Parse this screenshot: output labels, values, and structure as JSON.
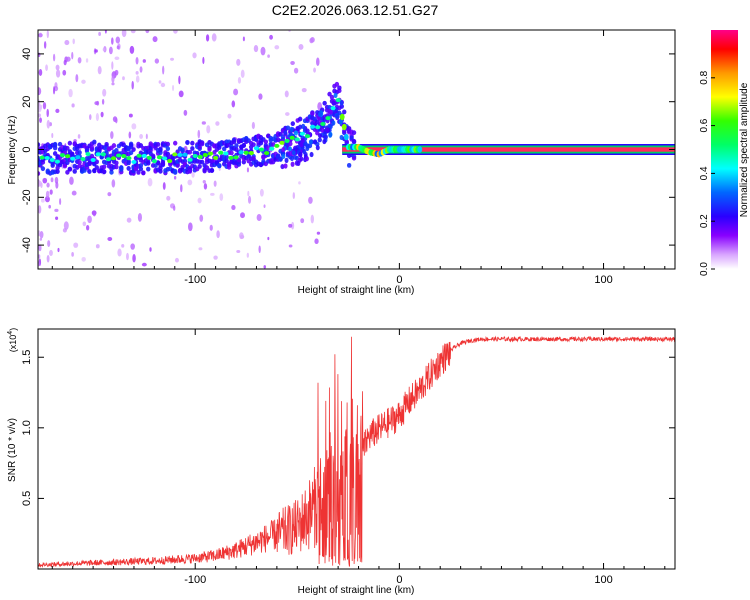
{
  "figure": {
    "title": "C2E2.2026.063.12.51.G27"
  },
  "chart_data": [
    {
      "type": "heatmap",
      "xlabel": "Height of straight line (km)",
      "ylabel": "Frequency (Hz)",
      "xlim": [
        -177,
        135
      ],
      "ylim": [
        -50,
        50
      ],
      "xticks": [
        -100,
        0,
        100
      ],
      "xtick_labels": [
        "-100",
        "0",
        "100"
      ],
      "yticks": [
        -40,
        -20,
        0,
        20,
        40
      ],
      "ytick_labels": [
        "-40",
        "-20",
        "0",
        "20",
        "40"
      ],
      "grid": false,
      "colorbar": {
        "label": "Normalized spectral amplitude",
        "range": [
          0,
          1
        ],
        "ticks": [
          0,
          0.2,
          0.4,
          0.6,
          0.8
        ],
        "tick_labels": [
          "0.0",
          "0.2",
          "0.4",
          "0.6",
          "0.8"
        ],
        "colormap": [
          "#ffffff",
          "#cc66ff",
          "#3300ff",
          "#00ffff",
          "#00ff00",
          "#ffff00",
          "#ff6600",
          "#ff0000",
          "#ff0088"
        ]
      },
      "series": [
        {
          "name": "dominant frequency track",
          "x": [
            -177,
            -150,
            -125,
            -100,
            -80,
            -65,
            -55,
            -50,
            -45,
            -40,
            -35,
            -30,
            -25,
            -20,
            -15,
            -10,
            -5,
            0,
            10,
            135
          ],
          "y": [
            -4,
            -3,
            -4,
            -3,
            -2,
            0,
            3,
            5,
            7,
            10,
            14,
            22,
            1,
            1,
            -1,
            -2,
            0,
            0,
            0,
            0
          ]
        }
      ]
    },
    {
      "type": "line",
      "xlabel": "Height of straight line (km)",
      "ylabel": "SNR (10 * v/v)",
      "y_multiplier": "(x10",
      "y_multiplier_exp": "4",
      "y_multiplier_close": ")",
      "xlim": [
        -177,
        135
      ],
      "ylim": [
        0,
        1.7
      ],
      "xticks": [
        -100,
        0,
        100
      ],
      "xtick_labels": [
        "-100",
        "0",
        "100"
      ],
      "yticks": [
        0.5,
        1.0,
        1.5
      ],
      "ytick_labels": [
        "0.5",
        "1.0",
        "1.5"
      ],
      "grid": false,
      "color": "#ee3333",
      "series": [
        {
          "name": "SNR envelope",
          "x": [
            -177,
            -160,
            -140,
            -120,
            -100,
            -90,
            -80,
            -70,
            -60,
            -50,
            -45,
            -40,
            -35,
            -30,
            -25,
            -22,
            -20,
            -18,
            -15,
            -10,
            -5,
            0,
            5,
            10,
            15,
            20,
            25,
            30,
            35,
            40,
            50,
            60,
            80,
            100,
            120,
            135
          ],
          "y": [
            0.03,
            0.04,
            0.05,
            0.06,
            0.08,
            0.1,
            0.14,
            0.2,
            0.26,
            0.32,
            0.4,
            0.5,
            0.55,
            0.6,
            0.65,
            0.6,
            0.7,
            0.85,
            0.95,
            1.0,
            1.05,
            1.1,
            1.2,
            1.28,
            1.38,
            1.48,
            1.55,
            1.6,
            1.62,
            1.63,
            1.63,
            1.63,
            1.63,
            1.63,
            1.63,
            1.63
          ]
        }
      ]
    }
  ]
}
